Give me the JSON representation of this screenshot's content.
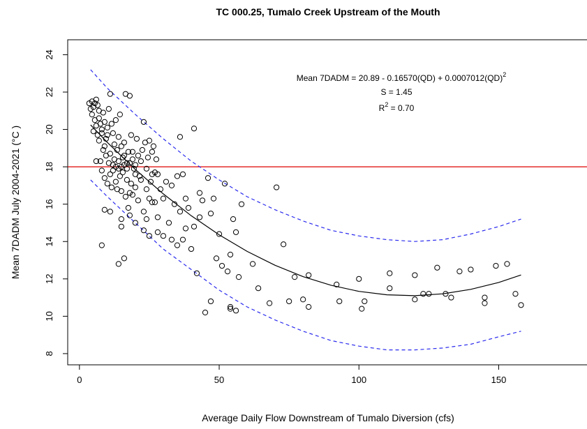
{
  "chart_data": {
    "type": "scatter",
    "title": "TC 000.25, Tumalo Creek Upstream of the Mouth",
    "xlabel": "Average Daily Flow Downstream of Tumalo Diversion (cfs)",
    "ylabel": "Mean 7DADM July 2004-2021 (°C )",
    "annotation": {
      "equation": "Mean 7DADM = 20.89 - 0.16570(QD) + 0.0007012(QD)",
      "equation_sup": "2",
      "s": "S = 1.45",
      "r_base": "R",
      "r_sup": "2",
      "r_rest": " = 0.70"
    },
    "xlim": [
      -4.2,
      181.6
    ],
    "ylim": [
      7.4,
      24.8
    ],
    "xticks": [
      0,
      50,
      100,
      150
    ],
    "yticks": [
      8,
      10,
      12,
      14,
      16,
      18,
      20,
      22,
      24
    ],
    "hline": {
      "value": 18,
      "color": "#e00000"
    },
    "points": {
      "color": "#000000",
      "x": [
        3.5,
        4,
        4.5,
        5,
        5.5,
        6,
        6.5,
        7,
        4.5,
        5,
        5.5,
        6,
        6.5,
        7,
        7.5,
        8,
        8.5,
        9,
        9.5,
        10,
        10.5,
        11,
        11.5,
        12,
        12.5,
        13,
        13.5,
        14,
        14.5,
        15,
        15.5,
        16,
        16.5,
        17,
        17.5,
        18,
        18.5,
        19,
        19.5,
        20,
        20.5,
        21,
        21.5,
        22,
        22.5,
        23,
        23.5,
        24,
        24.5,
        25,
        25.5,
        26,
        26.5,
        27,
        27.5,
        7.5,
        8,
        8.5,
        9,
        9.5,
        10,
        10.5,
        11,
        11.5,
        12,
        12.5,
        13,
        13.5,
        14,
        14.5,
        15,
        15.5,
        16,
        16.5,
        17,
        17.5,
        18,
        18.5,
        19,
        20,
        21,
        22,
        23,
        24,
        25,
        26,
        27,
        6,
        7,
        8,
        9,
        10,
        11,
        12,
        13,
        14,
        15,
        16,
        17,
        18,
        19,
        20,
        70.5,
        41,
        36,
        37,
        35,
        46,
        52,
        58,
        43,
        44,
        47,
        48,
        55,
        50,
        56,
        73,
        49,
        54,
        57,
        53,
        51,
        42,
        62,
        77,
        82,
        92,
        100,
        111,
        111,
        120,
        123,
        125,
        128,
        131,
        133,
        136,
        140,
        149,
        153,
        145,
        145,
        156,
        158,
        45,
        47,
        54,
        54,
        56,
        64,
        68,
        75,
        80,
        82,
        93,
        101,
        102,
        120,
        8,
        14,
        16,
        9,
        11,
        15,
        15,
        18,
        20,
        23,
        25,
        28,
        30,
        33,
        35,
        37,
        40,
        38,
        41,
        43,
        32,
        28,
        24,
        26,
        30,
        34,
        38,
        31,
        33,
        36,
        39,
        28,
        29
      ],
      "y": [
        21.4,
        21.1,
        21.5,
        21.2,
        21.4,
        21.6,
        21.3,
        21,
        20.8,
        19.9,
        20.5,
        20.2,
        19.7,
        20.6,
        20.3,
        19.8,
        20.9,
        20.4,
        19.5,
        20.1,
        21.1,
        21.9,
        20.3,
        19.8,
        19.2,
        20.5,
        18.9,
        19.6,
        20.8,
        19.1,
        18.5,
        19.3,
        21.9,
        18.2,
        18.8,
        21.8,
        19.7,
        18.4,
        17.9,
        18.1,
        19.5,
        18.6,
        17.5,
        18.3,
        18.9,
        20.4,
        19.3,
        17.9,
        18.5,
        19.4,
        17.2,
        18.8,
        19.1,
        17.7,
        18.4,
        18.3,
        17.8,
        18.9,
        17.4,
        18.6,
        17.1,
        18.2,
        17.6,
        16.9,
        17.8,
        18.4,
        17.2,
        16.8,
        17.9,
        17.5,
        16.7,
        17.7,
        18.1,
        16.4,
        17.3,
        15.8,
        16.6,
        17.1,
        16.5,
        16.9,
        16.2,
        17.3,
        15.6,
        16.8,
        16.3,
        17.6,
        16.1,
        18.3,
        19.4,
        20,
        19.1,
        19.7,
        18.7,
        18.1,
        18,
        18.3,
        18,
        18.6,
        17.9,
        18.2,
        18.8,
        17.6,
        16.9,
        20.05,
        19.6,
        17.6,
        17.5,
        17.4,
        17.1,
        16,
        16.6,
        16.2,
        15.5,
        16.3,
        15.2,
        14.4,
        14.5,
        13.85,
        13.1,
        13.3,
        12.1,
        12.4,
        12.7,
        12.3,
        12.8,
        12.1,
        12.2,
        11.7,
        12,
        12.3,
        11.5,
        12.2,
        11.2,
        11.2,
        12.6,
        11.2,
        11,
        12.4,
        12.5,
        12.7,
        12.8,
        11,
        10.7,
        11.2,
        10.6,
        10.2,
        10.8,
        10.5,
        10.4,
        10.3,
        11.5,
        10.7,
        10.8,
        10.9,
        10.5,
        10.8,
        10.4,
        10.8,
        10.9,
        13.8,
        12.8,
        13.1,
        15.7,
        15.6,
        14.8,
        15.2,
        15.4,
        15,
        14.6,
        14.3,
        14.5,
        14.3,
        14.1,
        13.8,
        14.1,
        13.6,
        14.7,
        14.8,
        15.3,
        15,
        15.3,
        15.2,
        16.1,
        16.3,
        16,
        16.3,
        17.2,
        17,
        15.6,
        15.8,
        17.6,
        16.8
      ]
    },
    "lines": [
      {
        "color": "#000000",
        "dash": "none",
        "x": [
          4,
          10,
          20,
          30,
          40,
          50,
          60,
          70,
          80,
          90,
          100,
          110,
          120,
          130,
          140,
          150,
          158
        ],
        "values": [
          20.24,
          19.3,
          17.86,
          16.55,
          15.38,
          14.36,
          13.47,
          12.73,
          12.12,
          11.66,
          11.33,
          11.15,
          11.1,
          11.2,
          11.44,
          11.81,
          12.21
        ]
      },
      {
        "color": "#2a2aee",
        "dash": "5 4",
        "x": [
          4,
          10,
          20,
          30,
          40,
          50,
          60,
          70,
          80,
          90,
          100,
          110,
          120,
          130,
          140,
          150,
          158
        ],
        "values": [
          23.2,
          22.2,
          20.8,
          19.5,
          18.3,
          17.3,
          16.4,
          15.7,
          15.1,
          14.6,
          14.3,
          14.1,
          14,
          14.1,
          14.4,
          14.8,
          15.2
        ]
      },
      {
        "color": "#2a2aee",
        "dash": "5 4",
        "x": [
          4,
          10,
          20,
          30,
          40,
          50,
          60,
          70,
          80,
          90,
          100,
          110,
          120,
          130,
          140,
          150,
          158
        ],
        "values": [
          17.3,
          16.4,
          15,
          13.6,
          12.5,
          11.4,
          10.5,
          9.8,
          9.2,
          8.7,
          8.4,
          8.2,
          8.2,
          8.3,
          8.5,
          8.9,
          9.2
        ]
      }
    ]
  }
}
